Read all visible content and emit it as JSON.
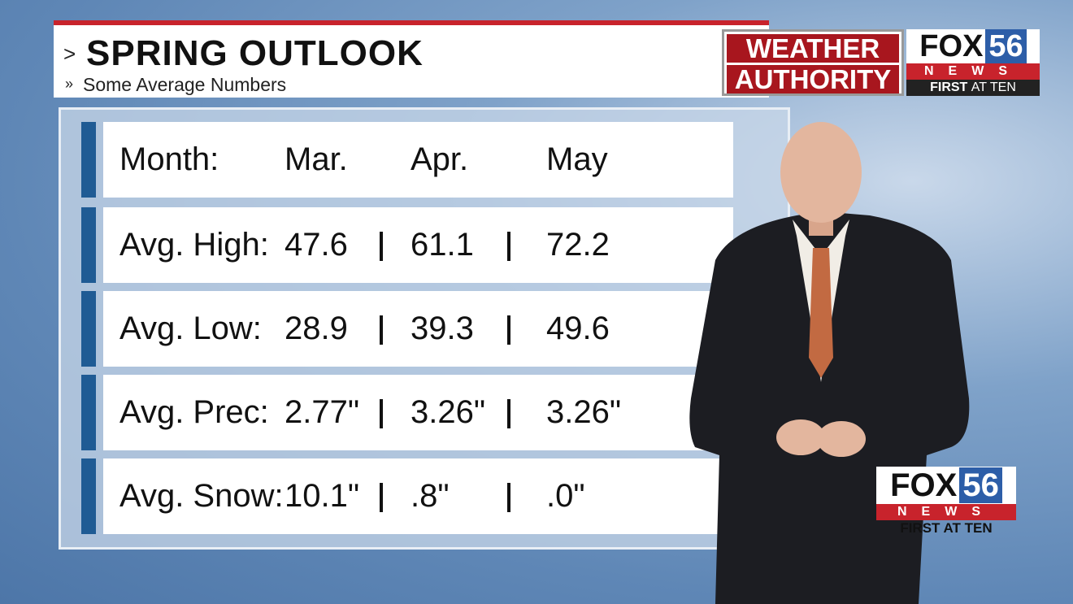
{
  "header": {
    "title": "SPRING OUTLOOK",
    "subtitle": "Some Average Numbers"
  },
  "logos": {
    "weather_top": "WEATHER",
    "weather_bottom": "AUTHORITY",
    "fox": "FOX",
    "channel": "56",
    "news": "NEWS",
    "first": "FIRST",
    "at_ten": "AT TEN"
  },
  "table": {
    "header": [
      "Month:",
      "Mar.",
      "Apr.",
      "May"
    ],
    "rows": [
      [
        "Avg. High:",
        "47.6",
        "61.1",
        "72.2"
      ],
      [
        "Avg. Low:",
        "28.9",
        "39.3",
        "49.6"
      ],
      [
        "Avg. Prec:",
        "2.77\"",
        "3.26\"",
        "3.26\""
      ],
      [
        "Avg. Snow:",
        "10.1\"",
        ".8\"",
        ".0\""
      ]
    ]
  }
}
